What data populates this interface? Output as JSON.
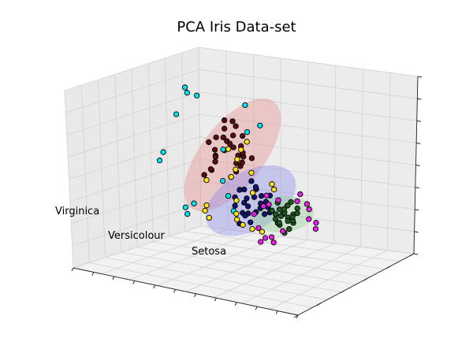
{
  "chart_data": {
    "type": "scatter3d",
    "title": "PCA Iris Data-set",
    "xlabel": "",
    "ylabel": "",
    "zlabel": "",
    "grid": true,
    "tick_labels_shown": false,
    "annotations": [
      {
        "text": "Virginica"
      },
      {
        "text": "Versicolour"
      },
      {
        "text": "Setosa"
      }
    ],
    "ellipses": [
      {
        "name": "red-ellipse",
        "color": "#e88a8a",
        "opacity": 0.38,
        "center": [
          0.42,
          0.55,
          0.62
        ],
        "rx": 0.3,
        "ry": 0.14,
        "rotate": -52
      },
      {
        "name": "blue-ellipse",
        "color": "#8a8aef",
        "opacity": 0.38,
        "center": [
          0.55,
          0.45,
          0.42
        ],
        "rx": 0.22,
        "ry": 0.13,
        "rotate": -30
      },
      {
        "name": "green-ellipse",
        "color": "#8fcf8f",
        "opacity": 0.38,
        "center": [
          0.72,
          0.4,
          0.4
        ],
        "rx": 0.14,
        "ry": 0.08,
        "rotate": -5
      }
    ],
    "series": [
      {
        "color": "#5a0e0e",
        "points": [
          [
            0.35,
            0.55,
            0.7
          ],
          [
            0.38,
            0.58,
            0.68
          ],
          [
            0.4,
            0.52,
            0.72
          ],
          [
            0.42,
            0.56,
            0.66
          ],
          [
            0.36,
            0.6,
            0.74
          ],
          [
            0.44,
            0.5,
            0.7
          ],
          [
            0.39,
            0.54,
            0.64
          ],
          [
            0.33,
            0.57,
            0.62
          ],
          [
            0.46,
            0.55,
            0.68
          ],
          [
            0.41,
            0.61,
            0.6
          ],
          [
            0.37,
            0.5,
            0.58
          ],
          [
            0.43,
            0.59,
            0.55
          ],
          [
            0.48,
            0.53,
            0.63
          ],
          [
            0.34,
            0.52,
            0.52
          ],
          [
            0.45,
            0.57,
            0.58
          ],
          [
            0.4,
            0.62,
            0.76
          ],
          [
            0.31,
            0.56,
            0.66
          ],
          [
            0.47,
            0.49,
            0.6
          ],
          [
            0.36,
            0.48,
            0.54
          ],
          [
            0.42,
            0.53,
            0.5
          ],
          [
            0.5,
            0.56,
            0.62
          ],
          [
            0.38,
            0.63,
            0.7
          ],
          [
            0.44,
            0.6,
            0.72
          ],
          [
            0.32,
            0.59,
            0.58
          ],
          [
            0.49,
            0.51,
            0.66
          ],
          [
            0.39,
            0.47,
            0.62
          ],
          [
            0.35,
            0.62,
            0.78
          ],
          [
            0.45,
            0.52,
            0.54
          ],
          [
            0.3,
            0.53,
            0.48
          ],
          [
            0.41,
            0.58,
            0.8
          ]
        ]
      },
      {
        "color": "#14146e",
        "points": [
          [
            0.52,
            0.45,
            0.4
          ],
          [
            0.55,
            0.42,
            0.44
          ],
          [
            0.58,
            0.47,
            0.38
          ],
          [
            0.5,
            0.49,
            0.46
          ],
          [
            0.6,
            0.44,
            0.42
          ],
          [
            0.54,
            0.4,
            0.36
          ],
          [
            0.57,
            0.5,
            0.44
          ],
          [
            0.53,
            0.46,
            0.34
          ],
          [
            0.62,
            0.46,
            0.4
          ],
          [
            0.49,
            0.43,
            0.38
          ],
          [
            0.56,
            0.48,
            0.48
          ],
          [
            0.59,
            0.41,
            0.46
          ],
          [
            0.51,
            0.47,
            0.32
          ],
          [
            0.61,
            0.49,
            0.36
          ],
          [
            0.55,
            0.44,
            0.3
          ],
          [
            0.48,
            0.45,
            0.42
          ],
          [
            0.63,
            0.43,
            0.44
          ],
          [
            0.57,
            0.46,
            0.5
          ],
          [
            0.52,
            0.42,
            0.48
          ],
          [
            0.58,
            0.5,
            0.34
          ],
          [
            0.54,
            0.48,
            0.52
          ],
          [
            0.6,
            0.4,
            0.38
          ],
          [
            0.5,
            0.44,
            0.28
          ],
          [
            0.56,
            0.41,
            0.4
          ],
          [
            0.62,
            0.48,
            0.46
          ]
        ]
      },
      {
        "color": "#1f5a1f",
        "points": [
          [
            0.72,
            0.4,
            0.4
          ],
          [
            0.74,
            0.38,
            0.42
          ],
          [
            0.7,
            0.42,
            0.38
          ],
          [
            0.76,
            0.41,
            0.36
          ],
          [
            0.73,
            0.36,
            0.44
          ],
          [
            0.71,
            0.39,
            0.34
          ],
          [
            0.75,
            0.43,
            0.4
          ],
          [
            0.69,
            0.37,
            0.42
          ],
          [
            0.77,
            0.39,
            0.38
          ],
          [
            0.72,
            0.44,
            0.44
          ],
          [
            0.74,
            0.41,
            0.32
          ],
          [
            0.7,
            0.4,
            0.46
          ],
          [
            0.76,
            0.37,
            0.4
          ],
          [
            0.73,
            0.42,
            0.36
          ],
          [
            0.78,
            0.41,
            0.42
          ],
          [
            0.71,
            0.36,
            0.38
          ],
          [
            0.75,
            0.39,
            0.46
          ],
          [
            0.69,
            0.41,
            0.34
          ],
          [
            0.74,
            0.44,
            0.38
          ],
          [
            0.72,
            0.37,
            0.36
          ],
          [
            0.77,
            0.43,
            0.44
          ],
          [
            0.7,
            0.38,
            0.4
          ],
          [
            0.76,
            0.4,
            0.48
          ],
          [
            0.73,
            0.39,
            0.3
          ],
          [
            0.71,
            0.43,
            0.42
          ]
        ]
      },
      {
        "color": "#00e5ee",
        "points": [
          [
            0.18,
            0.62,
            0.92
          ],
          [
            0.2,
            0.6,
            0.9
          ],
          [
            0.22,
            0.64,
            0.88
          ],
          [
            0.4,
            0.7,
            0.86
          ],
          [
            0.45,
            0.62,
            0.74
          ],
          [
            0.15,
            0.48,
            0.58
          ],
          [
            0.17,
            0.56,
            0.78
          ],
          [
            0.12,
            0.5,
            0.52
          ],
          [
            0.55,
            0.55,
            0.82
          ],
          [
            0.3,
            0.44,
            0.34
          ],
          [
            0.25,
            0.46,
            0.3
          ],
          [
            0.28,
            0.42,
            0.28
          ],
          [
            0.4,
            0.5,
            0.48
          ],
          [
            0.5,
            0.4,
            0.36
          ],
          [
            0.35,
            0.6,
            0.62
          ],
          [
            0.45,
            0.45,
            0.42
          ]
        ]
      },
      {
        "color": "#ffe31a",
        "points": [
          [
            0.42,
            0.52,
            0.66
          ],
          [
            0.44,
            0.55,
            0.6
          ],
          [
            0.46,
            0.5,
            0.56
          ],
          [
            0.38,
            0.4,
            0.36
          ],
          [
            0.36,
            0.42,
            0.32
          ],
          [
            0.4,
            0.38,
            0.3
          ],
          [
            0.48,
            0.46,
            0.4
          ],
          [
            0.5,
            0.42,
            0.34
          ],
          [
            0.55,
            0.38,
            0.3
          ],
          [
            0.58,
            0.4,
            0.28
          ],
          [
            0.62,
            0.5,
            0.52
          ],
          [
            0.64,
            0.48,
            0.5
          ],
          [
            0.45,
            0.48,
            0.52
          ],
          [
            0.52,
            0.52,
            0.44
          ],
          [
            0.47,
            0.58,
            0.7
          ],
          [
            0.43,
            0.6,
            0.64
          ],
          [
            0.6,
            0.44,
            0.26
          ],
          [
            0.35,
            0.46,
            0.48
          ],
          [
            0.53,
            0.5,
            0.56
          ],
          [
            0.49,
            0.44,
            0.3
          ]
        ]
      },
      {
        "color": "#e820e8",
        "points": [
          [
            0.64,
            0.42,
            0.48
          ],
          [
            0.68,
            0.44,
            0.46
          ],
          [
            0.66,
            0.4,
            0.44
          ],
          [
            0.8,
            0.38,
            0.5
          ],
          [
            0.82,
            0.42,
            0.48
          ],
          [
            0.84,
            0.4,
            0.46
          ],
          [
            0.86,
            0.36,
            0.42
          ],
          [
            0.62,
            0.38,
            0.3
          ],
          [
            0.66,
            0.36,
            0.26
          ],
          [
            0.7,
            0.34,
            0.28
          ],
          [
            0.72,
            0.32,
            0.26
          ],
          [
            0.6,
            0.46,
            0.4
          ],
          [
            0.78,
            0.44,
            0.52
          ],
          [
            0.88,
            0.38,
            0.4
          ],
          [
            0.65,
            0.34,
            0.24
          ],
          [
            0.74,
            0.36,
            0.32
          ],
          [
            0.58,
            0.42,
            0.36
          ],
          [
            0.9,
            0.34,
            0.38
          ]
        ]
      }
    ]
  }
}
